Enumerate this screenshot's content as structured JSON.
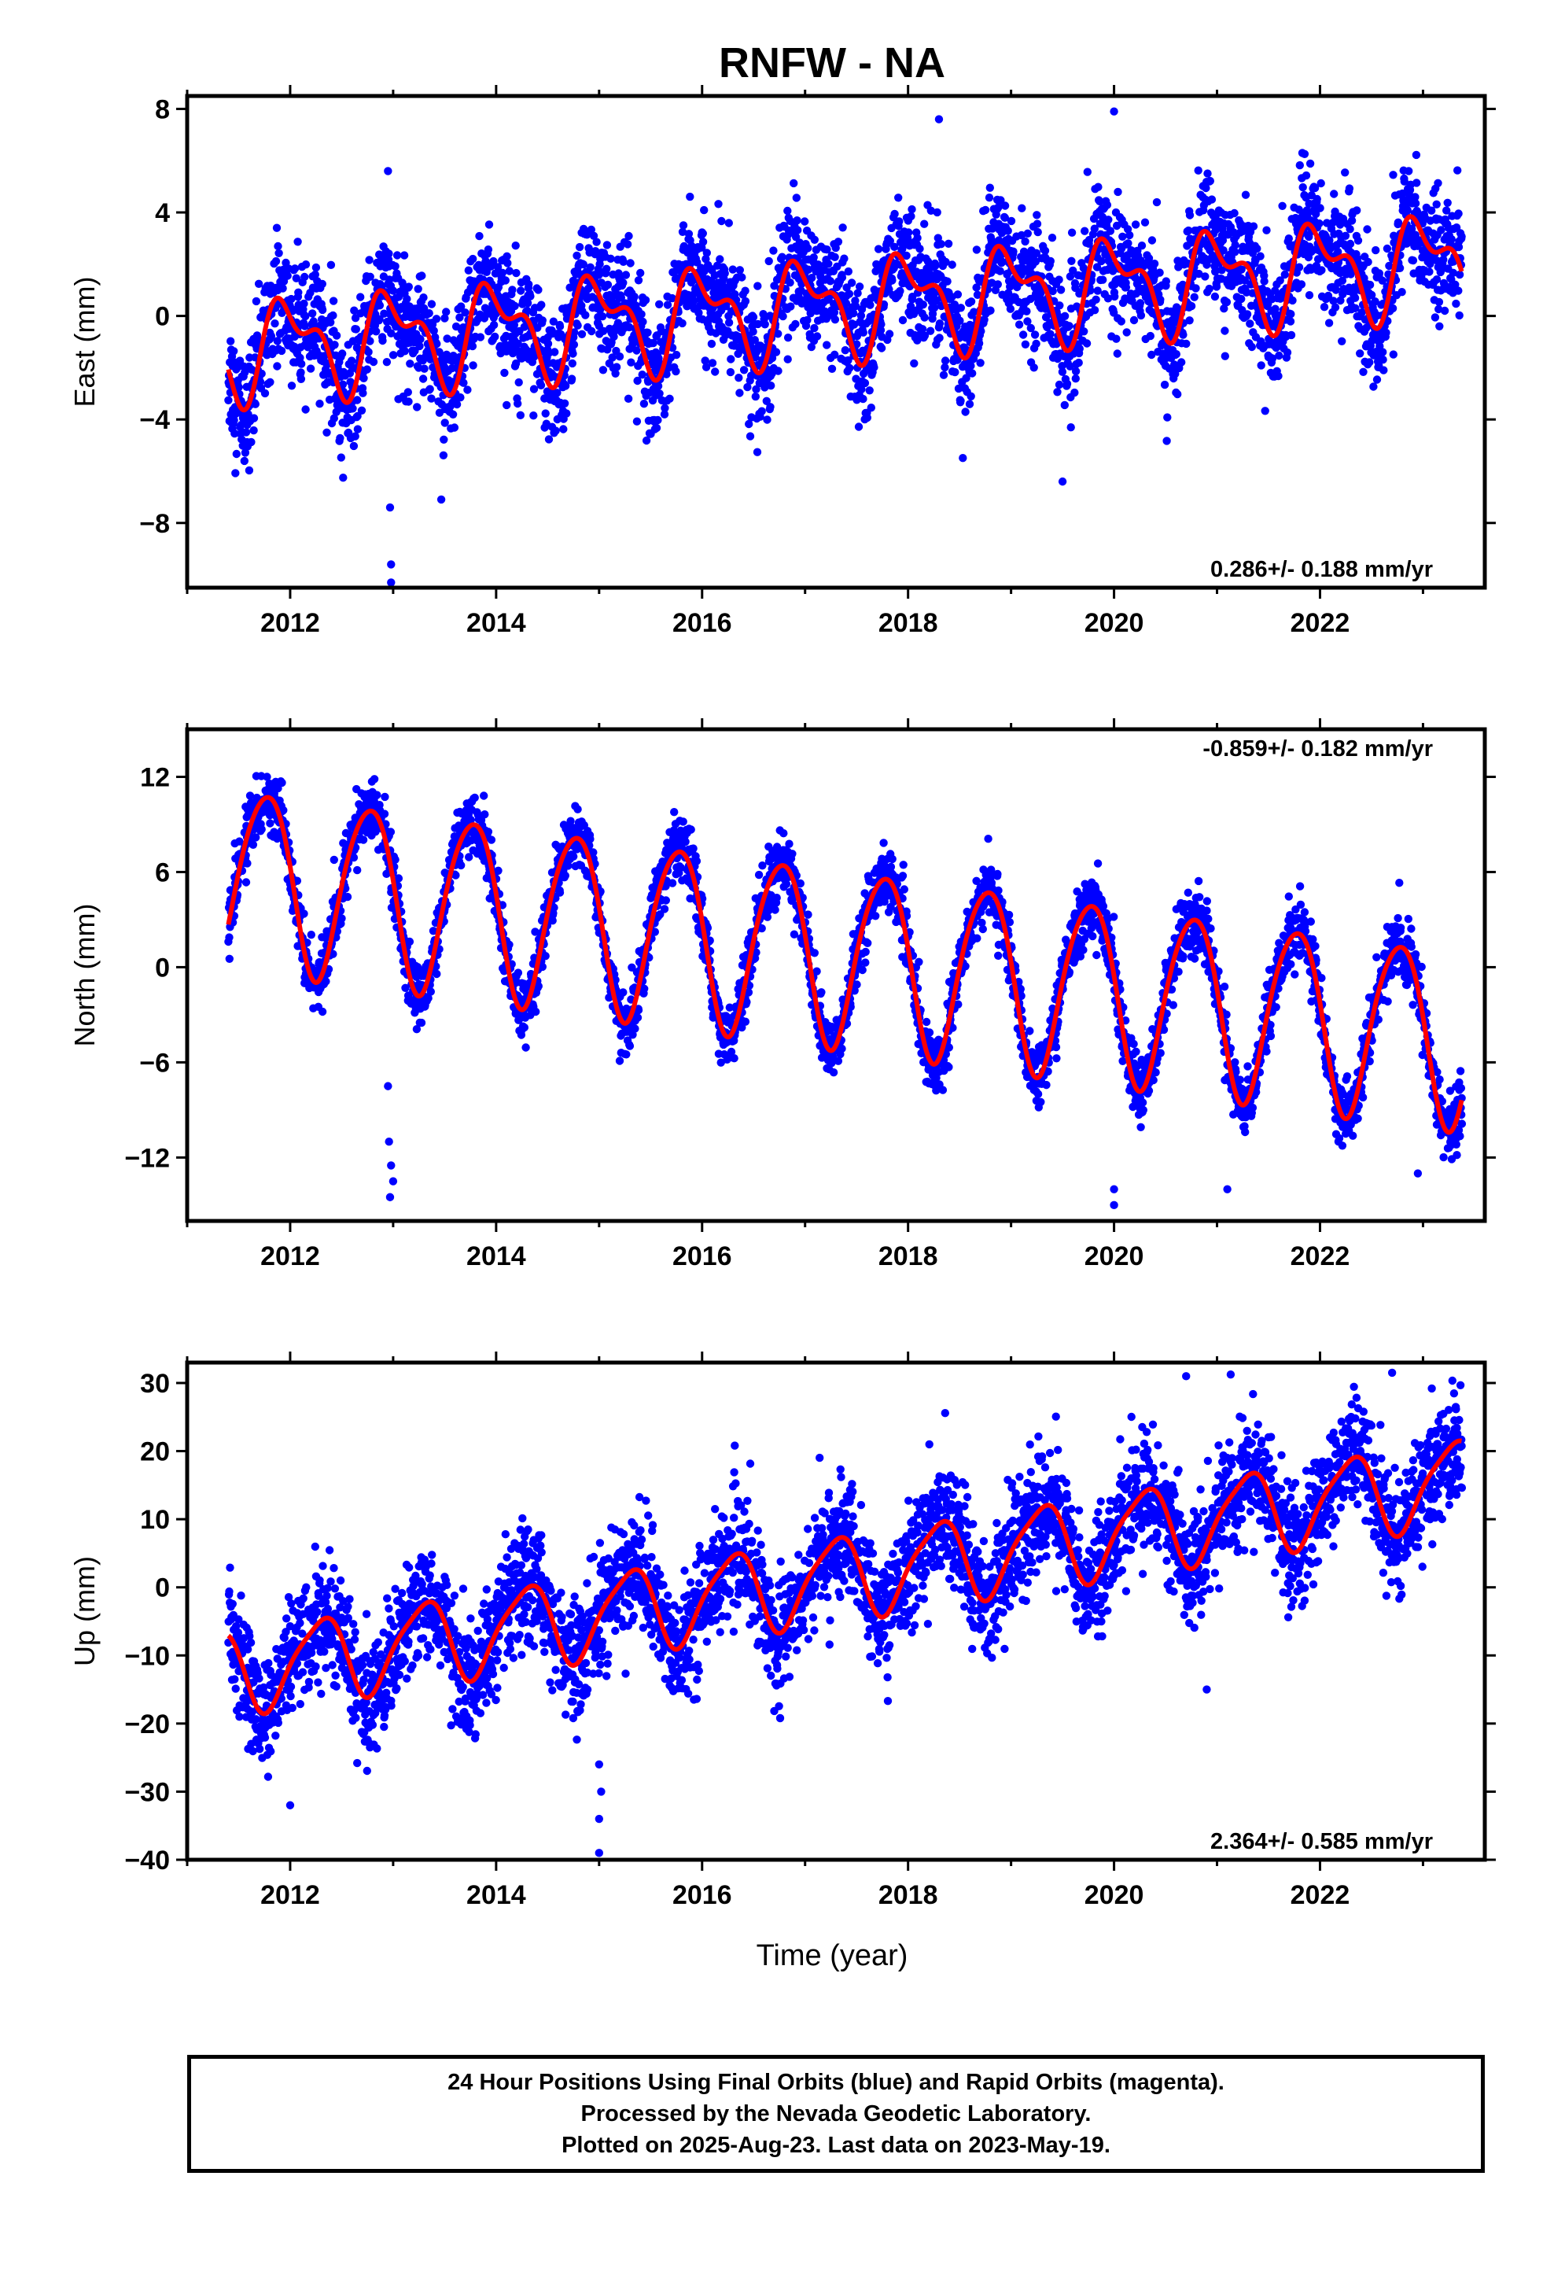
{
  "title": "RNFW - NA",
  "xlabel": "Time (year)",
  "footer": {
    "line1": "24 Hour Positions Using Final Orbits (blue) and Rapid Orbits (magenta).",
    "line2": "Processed by the Nevada Geodetic Laboratory.",
    "line3": "Plotted on 2025-Aug-23. Last data on 2023-May-19."
  },
  "colors": {
    "points": "#0000ff",
    "fit": "#ff0000",
    "frame": "#000000"
  },
  "chart_data": [
    {
      "type": "scatter",
      "ylabel": "East (mm)",
      "rate_label": "0.286+/- 0.188 mm/yr",
      "rate_position": "bottom-right",
      "xlim": [
        2011.0,
        2023.6
      ],
      "ylim": [
        -10.5,
        8.5
      ],
      "yticks": [
        -8,
        -4,
        0,
        4,
        8
      ],
      "xticks": [
        2012,
        2014,
        2016,
        2018,
        2020,
        2022
      ],
      "fit": {
        "x0": 2011.4,
        "x1": 2023.38,
        "offset": -1.3,
        "rate": 0.286,
        "amp1": 1.6,
        "phase1": 0.0,
        "amp2": 0.9,
        "phase2": 2.2,
        "noise": 1.15
      },
      "outliers": [
        [
          2012.98,
          -9.6
        ],
        [
          2012.97,
          -7.4
        ],
        [
          2012.95,
          5.6
        ],
        [
          2018.3,
          7.6
        ],
        [
          2020.0,
          7.9
        ],
        [
          2012.98,
          -10.3
        ],
        [
          2019.5,
          -6.4
        ]
      ],
      "series": [
        {
          "name": "Final Orbits",
          "color": "#0000ff"
        },
        {
          "name": "Model fit",
          "color": "#ff0000"
        }
      ]
    },
    {
      "type": "scatter",
      "ylabel": "North (mm)",
      "rate_label": "-0.859+/- 0.182 mm/yr",
      "rate_position": "top-right",
      "xlim": [
        2011.0,
        2023.6
      ],
      "ylim": [
        -16,
        15
      ],
      "yticks": [
        -12,
        -6,
        0,
        6,
        12
      ],
      "xticks": [
        2012,
        2014,
        2016,
        2018,
        2020,
        2022
      ],
      "fit": {
        "x0": 2011.4,
        "x1": 2023.38,
        "offset": 5.9,
        "rate": -0.859,
        "amp1": 5.6,
        "phase1": 1.5,
        "amp2": 0.6,
        "phase2": 0.4,
        "noise": 0.95
      },
      "outliers": [
        [
          2012.97,
          -14.5
        ],
        [
          2012.98,
          -12.5
        ],
        [
          2012.96,
          -11.0
        ],
        [
          2013.0,
          -13.5
        ],
        [
          2020.0,
          -15.0
        ],
        [
          2020.0,
          -14.0
        ],
        [
          2021.1,
          -14.0
        ],
        [
          2022.95,
          -13.0
        ],
        [
          2012.95,
          -7.5
        ]
      ],
      "series": [
        {
          "name": "Final Orbits",
          "color": "#0000ff"
        },
        {
          "name": "Model fit",
          "color": "#ff0000"
        }
      ]
    },
    {
      "type": "scatter",
      "ylabel": "Up (mm)",
      "rate_label": "2.364+/- 0.585 mm/yr",
      "rate_position": "bottom-right",
      "xlim": [
        2011.0,
        2023.6
      ],
      "ylim": [
        -40,
        33
      ],
      "yticks": [
        -40,
        -30,
        -20,
        -10,
        0,
        10,
        20,
        30
      ],
      "xticks": [
        2012,
        2014,
        2016,
        2018,
        2020,
        2022
      ],
      "fit": {
        "x0": 2011.4,
        "x1": 2023.38,
        "offset": -12.5,
        "rate": 2.364,
        "amp1": 6.0,
        "phase1": -1.8,
        "amp2": 1.2,
        "phase2": 0.5,
        "noise": 4.2
      },
      "outliers": [
        [
          2015.0,
          -39.0
        ],
        [
          2015.0,
          -34.0
        ],
        [
          2015.02,
          -30.0
        ],
        [
          2015.0,
          -26.0
        ],
        [
          2012.0,
          -32.0
        ],
        [
          2020.7,
          31.0
        ],
        [
          2022.7,
          31.5
        ],
        [
          2020.9,
          -15.0
        ]
      ],
      "series": [
        {
          "name": "Final Orbits",
          "color": "#0000ff"
        },
        {
          "name": "Model fit",
          "color": "#ff0000"
        }
      ]
    }
  ]
}
